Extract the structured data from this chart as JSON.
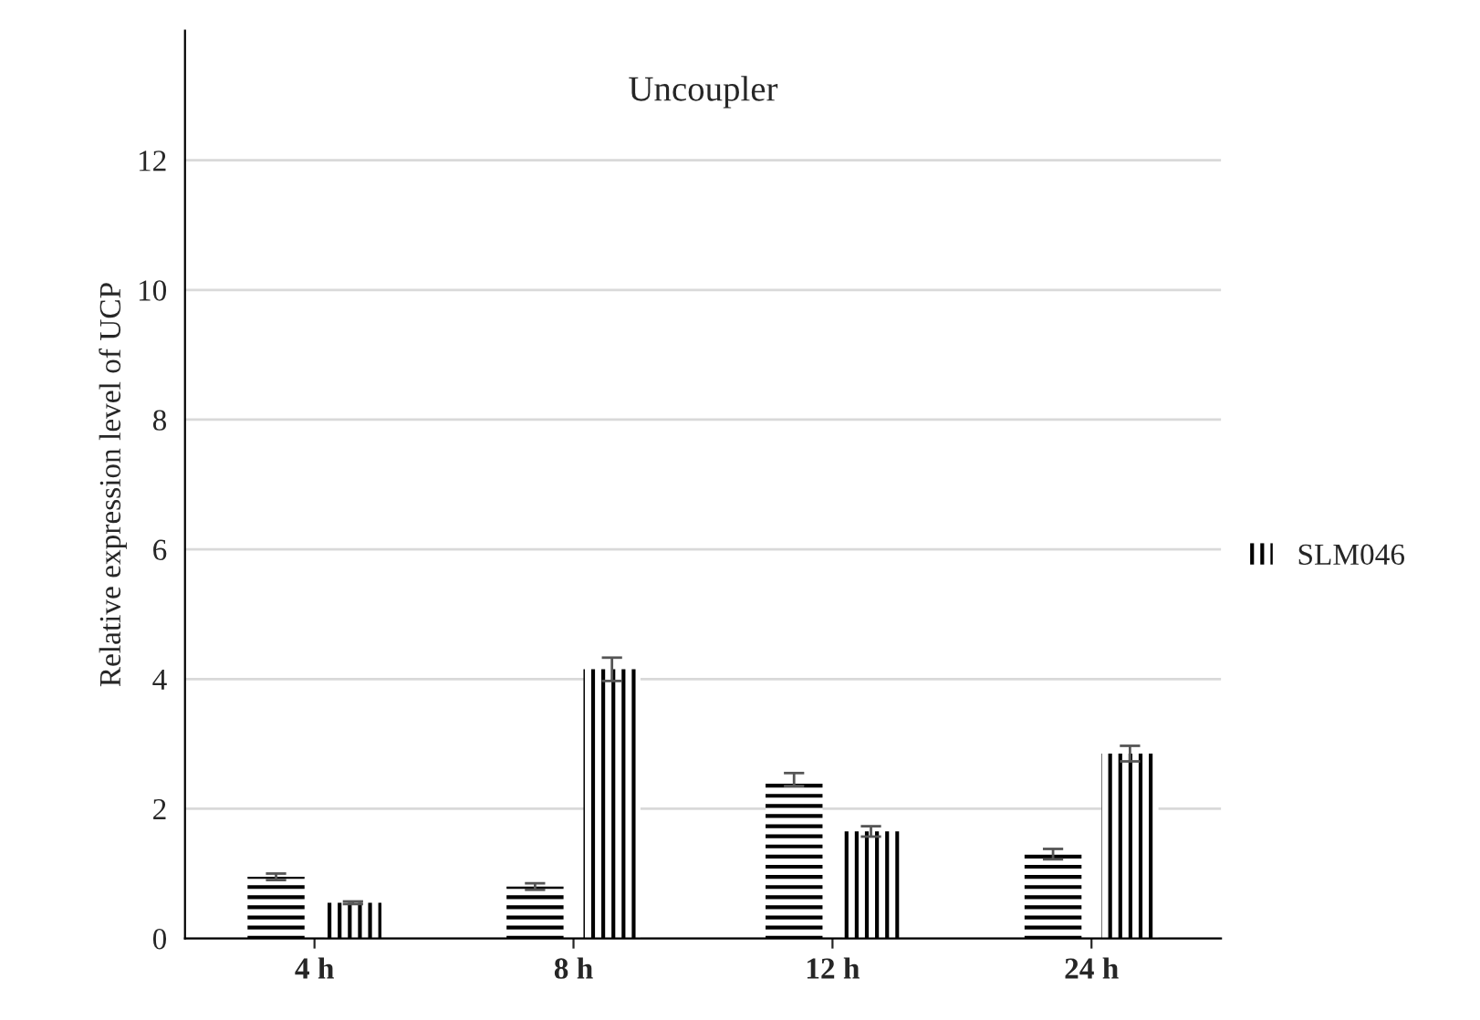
{
  "chart_data": {
    "type": "bar",
    "title": "Uncoupler",
    "ylabel": "Relative expression level of UCP",
    "categories": [
      "4 h",
      "8 h",
      "12 h",
      "24 h"
    ],
    "series": [
      {
        "color": "#000000",
        "values": [
          0.95,
          0.8,
          2.45,
          1.3
        ],
        "errors": [
          0.05,
          0.05,
          0.1,
          0.08
        ]
      },
      {
        "name": "SLM046",
        "color": "#000000",
        "values": [
          0.55,
          4.15,
          1.65,
          2.85
        ],
        "errors": [
          0.02,
          0.18,
          0.08,
          0.12
        ]
      }
    ],
    "ylim": [
      0,
      14
    ],
    "yticks": [
      0,
      2,
      4,
      6,
      8,
      10,
      12
    ],
    "grid": "y",
    "legend": "right"
  }
}
